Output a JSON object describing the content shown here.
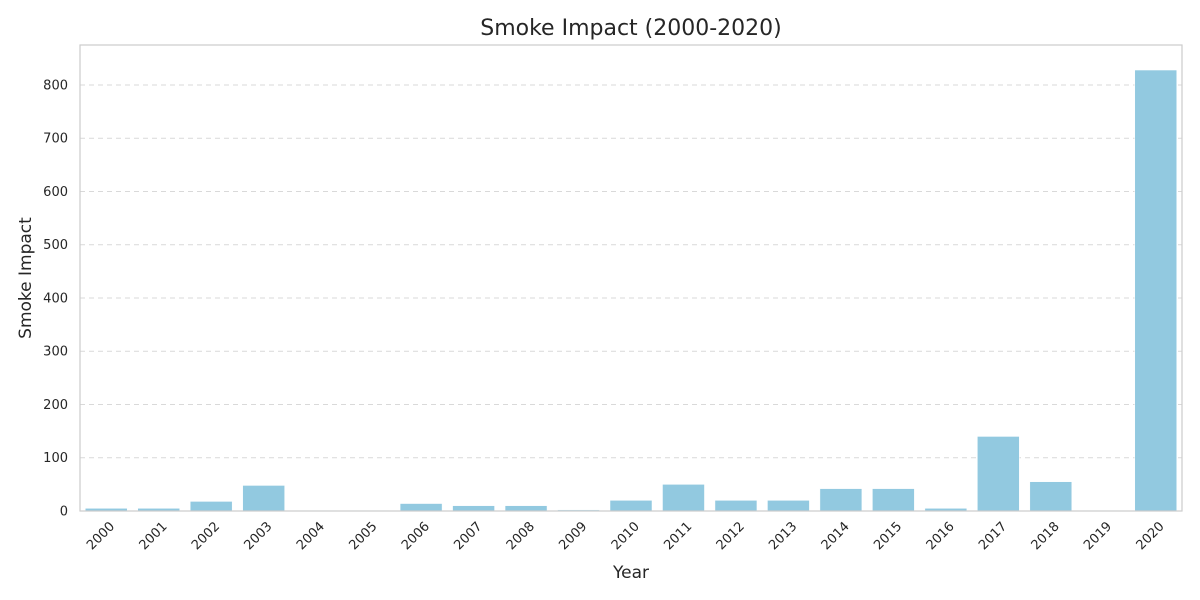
{
  "chart_data": {
    "type": "bar",
    "title": "Smoke Impact (2000-2020)",
    "xlabel": "Year",
    "ylabel": "Smoke Impact",
    "categories": [
      "2000",
      "2001",
      "2002",
      "2003",
      "2004",
      "2005",
      "2006",
      "2007",
      "2008",
      "2009",
      "2010",
      "2011",
      "2012",
      "2013",
      "2014",
      "2015",
      "2016",
      "2017",
      "2018",
      "2019",
      "2020"
    ],
    "values": [
      5,
      5,
      18,
      48,
      1,
      1,
      14,
      10,
      10,
      2,
      20,
      50,
      20,
      20,
      42,
      42,
      5,
      140,
      55,
      1,
      828
    ],
    "ylim": [
      0,
      875
    ],
    "yticks": [
      0,
      100,
      200,
      300,
      400,
      500,
      600,
      700,
      800
    ],
    "grid": true,
    "legend": "none",
    "colors": {
      "bar": "#92c9e0",
      "grid": "#d9d9d9",
      "frame": "#cccccc",
      "text": "#262626"
    }
  }
}
